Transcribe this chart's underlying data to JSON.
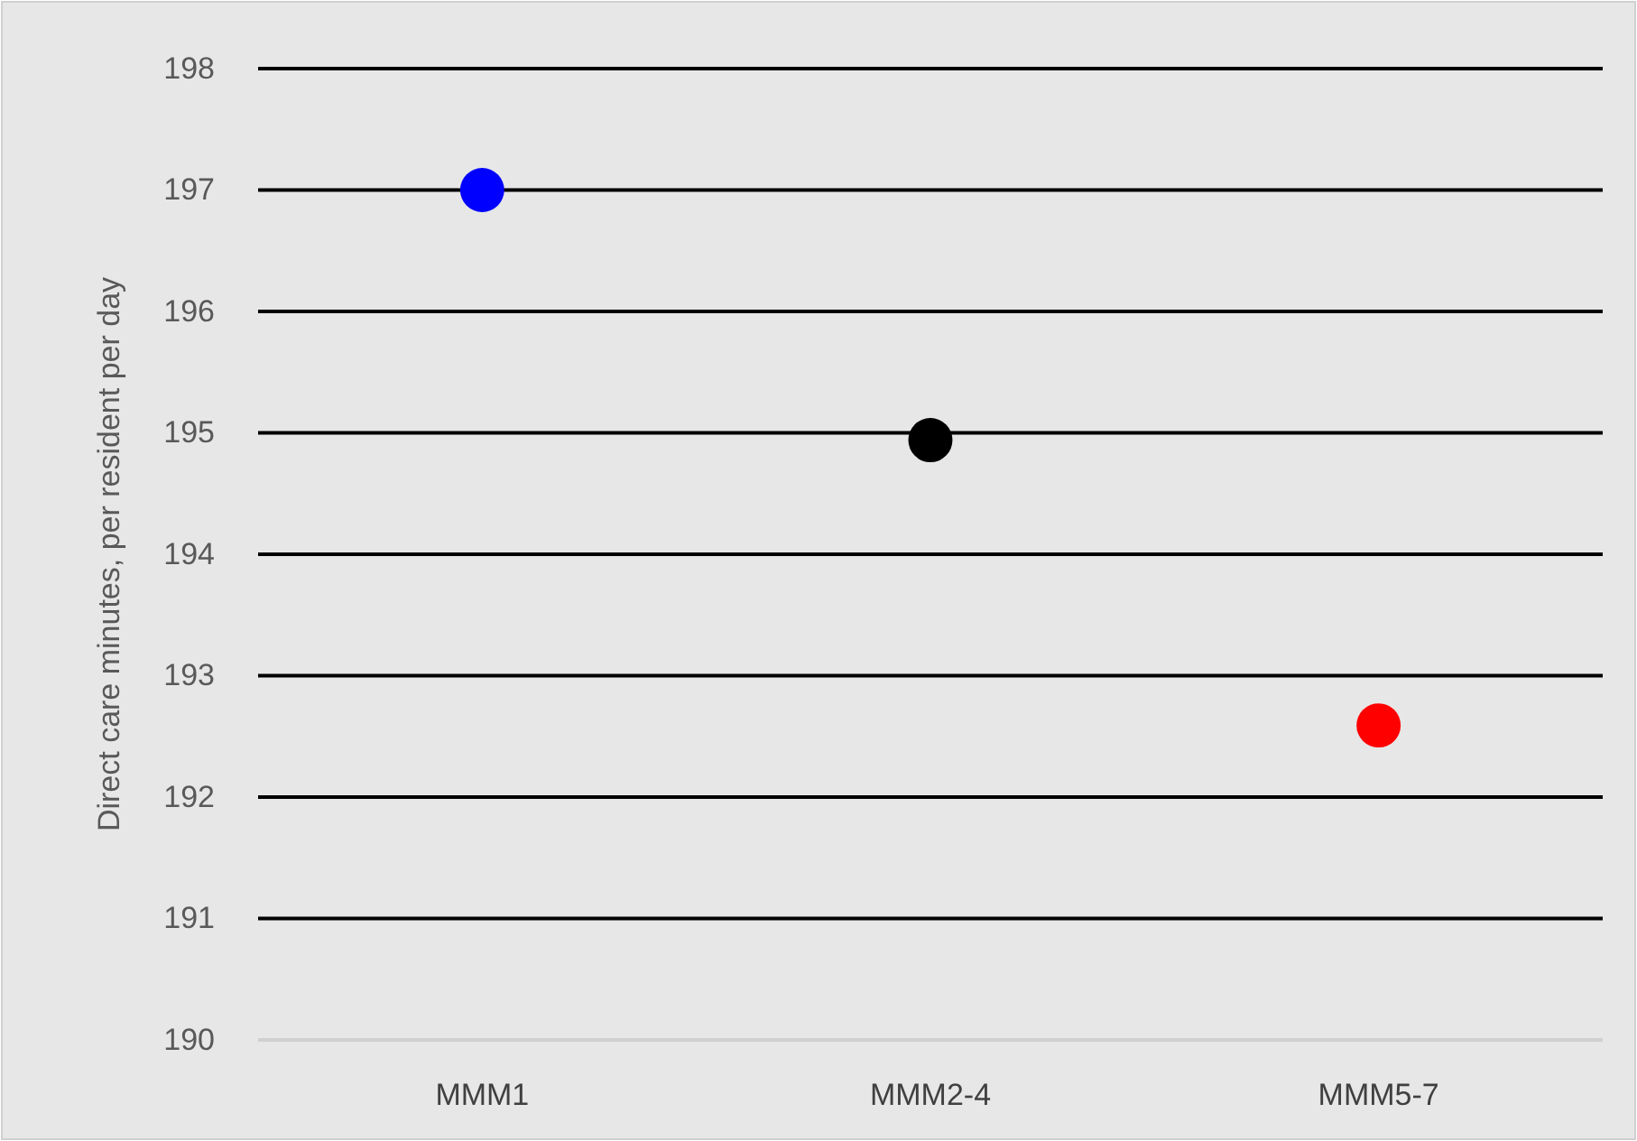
{
  "chart_data": {
    "type": "scatter",
    "ylabel": "Direct care minutes, per resident per day",
    "categories": [
      "MMM1",
      "MMM2-4",
      "MMM5-7"
    ],
    "values": [
      197.0,
      194.94,
      192.59
    ],
    "colors": [
      "#0000ff",
      "#000000",
      "#ff0000"
    ],
    "ylim": [
      190,
      198
    ],
    "yticks": [
      190,
      191,
      192,
      193,
      194,
      195,
      196,
      197,
      198
    ],
    "grid": "y",
    "marker": "circle"
  }
}
